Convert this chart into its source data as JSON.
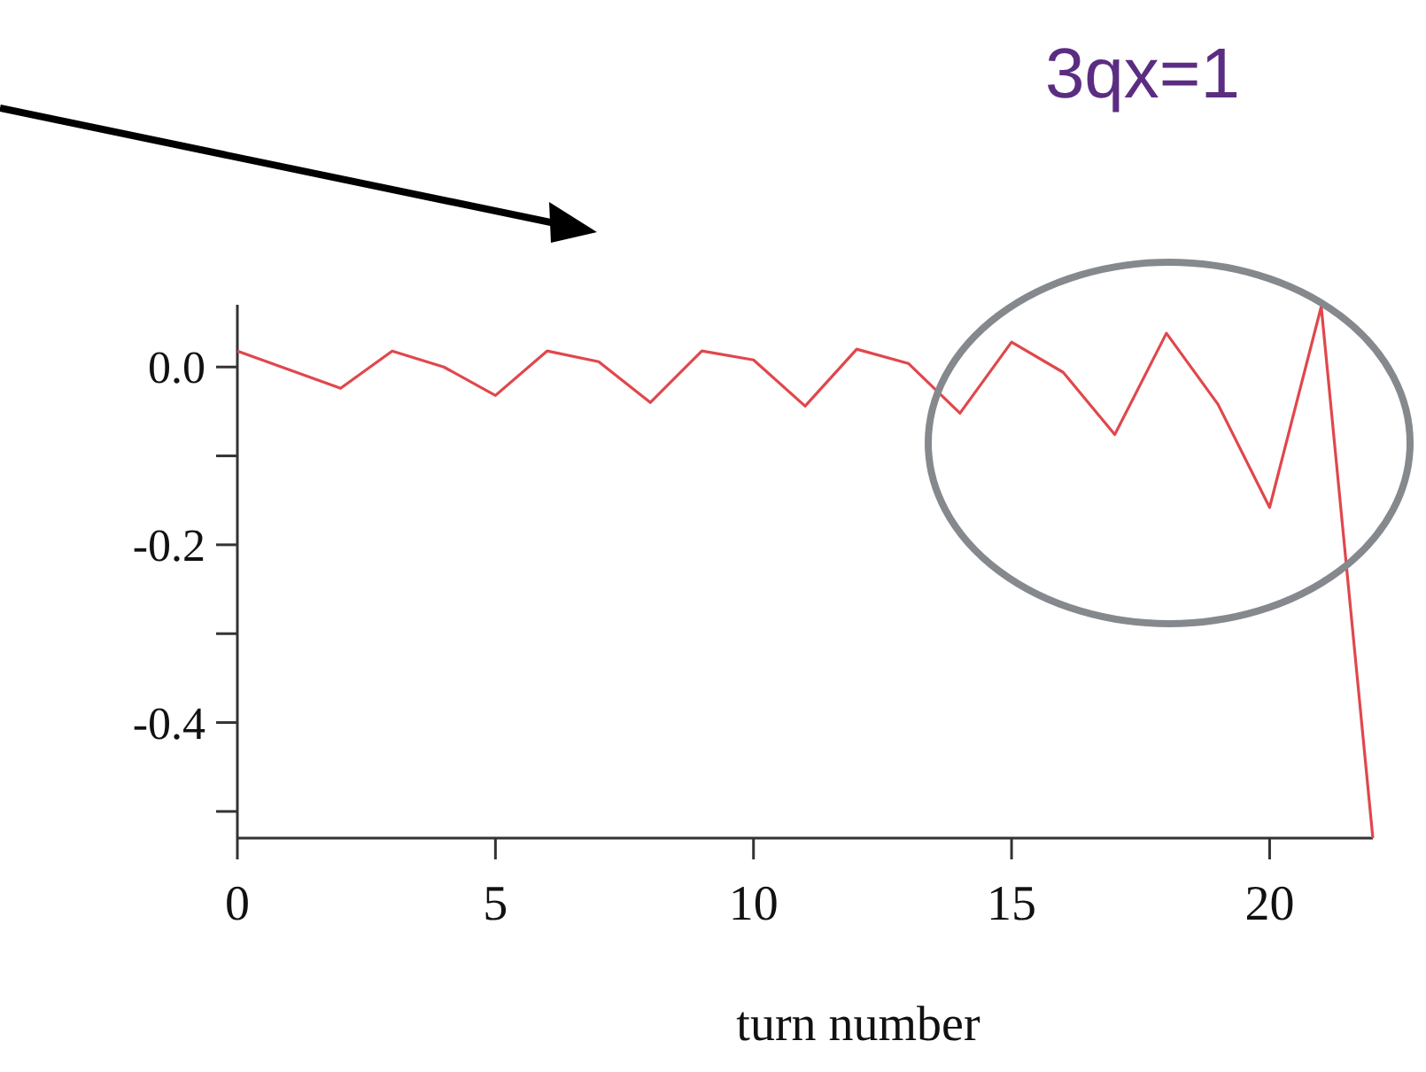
{
  "chart_data": {
    "type": "line",
    "xlabel": "turn number",
    "annotations": [
      "3qx=1"
    ],
    "x": [
      0,
      1,
      2,
      3,
      4,
      5,
      6,
      7,
      8,
      9,
      10,
      11,
      12,
      13,
      14,
      15,
      16,
      17,
      18,
      19,
      20,
      21,
      22
    ],
    "series": [
      {
        "color": "#e0474c",
        "values": [
          0.018,
          -0.003,
          -0.024,
          0.018,
          0.0,
          -0.032,
          0.018,
          0.006,
          -0.04,
          0.018,
          0.008,
          -0.044,
          0.02,
          0.004,
          -0.052,
          0.028,
          -0.006,
          -0.076,
          0.038,
          -0.042,
          -0.158,
          0.068,
          -0.53
        ]
      }
    ],
    "xlim": [
      0,
      22
    ],
    "ylim": [
      -0.53,
      0.07
    ],
    "xticks": [
      0,
      5,
      10,
      15,
      20
    ],
    "yticks": [
      {
        "value": 0,
        "label": "0.0"
      },
      {
        "value": -0.1,
        "label": null
      },
      {
        "value": -0.2,
        "label": "-0.2"
      },
      {
        "value": -0.3,
        "label": null
      },
      {
        "value": -0.4,
        "label": "-0.4"
      },
      {
        "value": -0.5,
        "label": null
      }
    ],
    "grid": false,
    "marker": "none",
    "line_style": "solid"
  }
}
